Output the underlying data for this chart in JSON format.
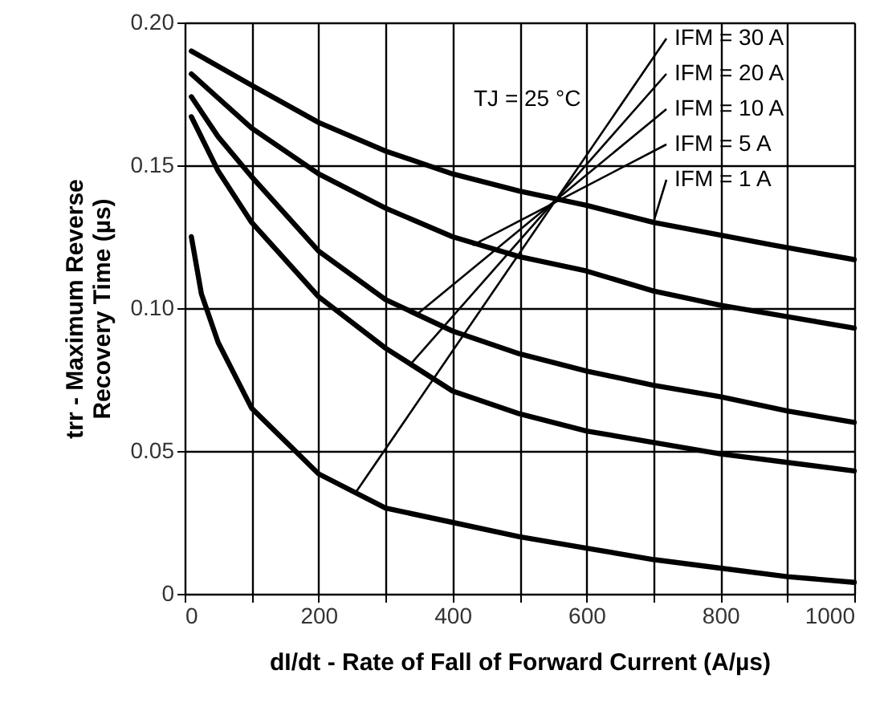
{
  "chart_data": {
    "type": "line",
    "xlabel": "dI/dt - Rate of Fall of Forward Current (A/µs)",
    "ylabel": "trr - Maximum Reverse Recovery Time (µs)",
    "xlim": [
      0,
      1000
    ],
    "xticks": [
      0,
      {
        "value": 100,
        "label": null
      },
      200,
      {
        "value": 300,
        "label": null
      },
      400,
      {
        "value": 500,
        "label": null
      },
      600,
      {
        "value": 700,
        "label": null
      },
      800,
      {
        "value": 900,
        "label": null
      },
      1000
    ],
    "ylim": [
      0,
      0.2
    ],
    "yticks": [
      0,
      {
        "value": 0.05,
        "label": "0.05"
      },
      {
        "value": 0.1,
        "label": "0.10"
      },
      {
        "value": 0.15,
        "label": "0.15"
      },
      {
        "value": 0.2,
        "label": "0.20"
      }
    ],
    "grid": true,
    "marker": "none",
    "line_style": "solid",
    "annotations": [
      "TJ = 25 °C",
      {
        "text": "IFM = 30 A",
        "x": 257,
        "y": 0.036
      },
      {
        "text": "IFM = 20 A",
        "x": 336,
        "y": 0.08
      },
      {
        "text": "IFM = 10 A",
        "x": 348,
        "y": 0.098
      },
      {
        "text": "IFM = 5 A",
        "x": 430,
        "y": 0.122
      },
      {
        "text": "IFM = 1 A",
        "x": 700,
        "y": 0.13
      }
    ],
    "series": [
      {
        "color": "#000000",
        "x": [
          10,
          100,
          200,
          300,
          400,
          500,
          600,
          700,
          880,
          1000
        ],
        "values": [
          0.19,
          0.178,
          0.165,
          0.155,
          0.147,
          0.141,
          0.136,
          0.13,
          0.122,
          0.117
        ]
      },
      {
        "color": "#000000",
        "x": [
          10,
          100,
          200,
          300,
          400,
          500,
          600,
          700,
          800,
          900,
          1000
        ],
        "values": [
          0.182,
          0.163,
          0.147,
          0.135,
          0.125,
          0.118,
          0.113,
          0.106,
          0.101,
          0.097,
          0.093
        ]
      },
      {
        "color": "#000000",
        "x": [
          10,
          50,
          100,
          200,
          300,
          400,
          500,
          600,
          700,
          800,
          900,
          1000
        ],
        "values": [
          0.174,
          0.16,
          0.146,
          0.12,
          0.103,
          0.092,
          0.084,
          0.078,
          0.073,
          0.069,
          0.064,
          0.06
        ]
      },
      {
        "color": "#000000",
        "x": [
          10,
          50,
          100,
          200,
          300,
          400,
          500,
          600,
          700,
          800,
          900,
          1000
        ],
        "values": [
          0.167,
          0.148,
          0.13,
          0.104,
          0.086,
          0.071,
          0.063,
          0.057,
          0.053,
          0.049,
          0.046,
          0.043
        ]
      },
      {
        "color": "#000000",
        "x": [
          10,
          25,
          50,
          100,
          200,
          300,
          400,
          500,
          600,
          700,
          800,
          900,
          1000
        ],
        "values": [
          0.125,
          0.105,
          0.088,
          0.065,
          0.042,
          0.03,
          0.025,
          0.02,
          0.016,
          0.012,
          0.009,
          0.006,
          0.004
        ]
      }
    ]
  }
}
